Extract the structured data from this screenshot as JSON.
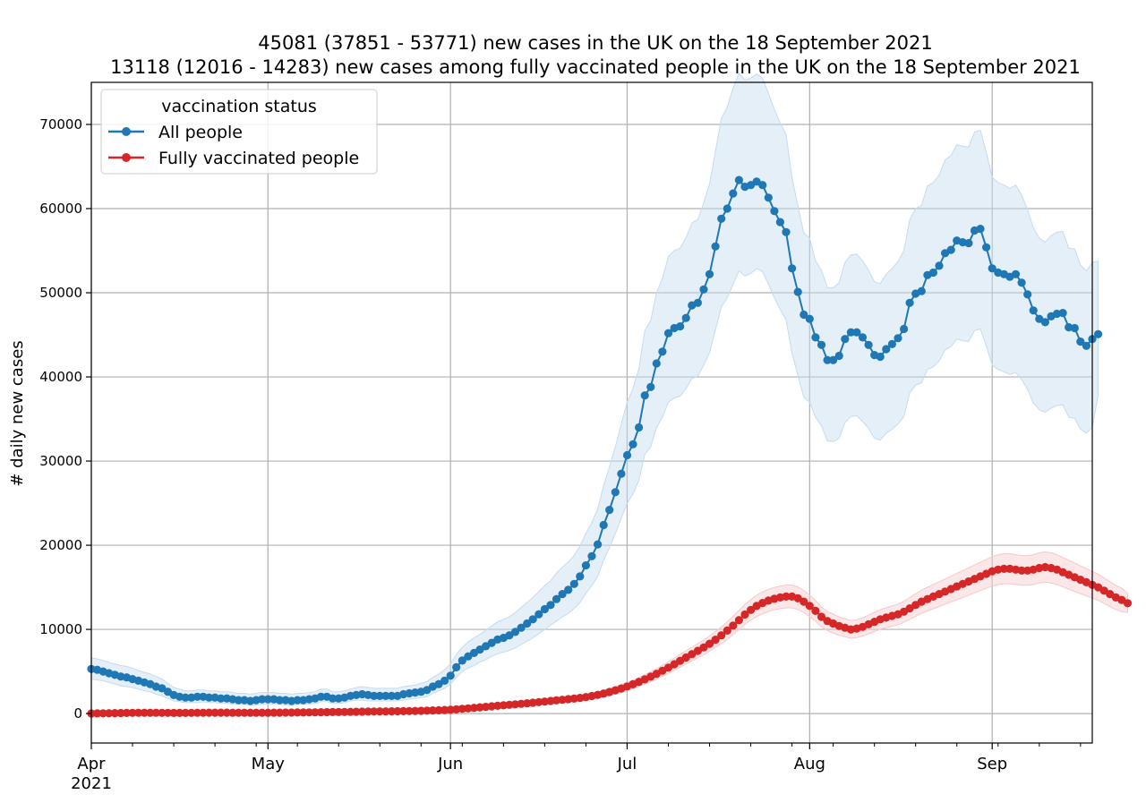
{
  "chart_data": {
    "type": "line",
    "title": "45081 (37851 - 53771) new cases in the UK on the 18 September 2021",
    "subtitle": "13118 (12016 - 14283) new cases among fully vaccinated people in the UK on the 18 September 2021",
    "xlabel": "",
    "ylabel": "# daily new cases",
    "xlim": [
      "2021-04-01",
      "2021-09-18"
    ],
    "ylim": [
      -3500,
      75000
    ],
    "x_tick_labels": [
      "Apr",
      "May",
      "Jun",
      "Jul",
      "Aug",
      "Sep"
    ],
    "x_tick_dates": [
      "2021-04-01",
      "2021-05-01",
      "2021-06-01",
      "2021-07-01",
      "2021-08-01",
      "2021-09-01"
    ],
    "x_year_label": "2021",
    "y_ticks": [
      0,
      10000,
      20000,
      30000,
      40000,
      50000,
      60000,
      70000
    ],
    "y_tick_labels": [
      "0",
      "10000",
      "20000",
      "30000",
      "40000",
      "50000",
      "60000",
      "70000"
    ],
    "grid": true,
    "legend": {
      "title": "vaccination status",
      "placement": "top-left",
      "entries": [
        "All people",
        "Fully vaccinated people"
      ]
    },
    "series": [
      {
        "name": "All people",
        "color": "#1f77b4",
        "band_color": "#c6dbef",
        "start_date": "2021-04-01",
        "values": [
          5300,
          5200,
          5000,
          4800,
          4600,
          4400,
          4300,
          4100,
          3900,
          3700,
          3500,
          3200,
          3000,
          2600,
          2200,
          2000,
          1900,
          1900,
          2000,
          2000,
          1900,
          1900,
          1800,
          1800,
          1700,
          1600,
          1600,
          1500,
          1600,
          1700,
          1700,
          1700,
          1600,
          1600,
          1500,
          1600,
          1600,
          1700,
          1800,
          2000,
          2000,
          1800,
          1800,
          1900,
          2100,
          2200,
          2300,
          2200,
          2100,
          2100,
          2100,
          2100,
          2100,
          2300,
          2400,
          2500,
          2600,
          2800,
          3200,
          3500,
          3900,
          4500,
          5500,
          6300,
          6800,
          7200,
          7600,
          8000,
          8400,
          8800,
          9000,
          9300,
          9700,
          10200,
          10700,
          11200,
          11800,
          12400,
          12900,
          13600,
          14200,
          14700,
          15400,
          16300,
          17600,
          18700,
          20100,
          22400,
          24200,
          26300,
          28500,
          30700,
          32000,
          34000,
          37800,
          38800,
          41600,
          43000,
          45200,
          45800,
          46000,
          47000,
          48500,
          48800,
          50400,
          52200,
          55500,
          58800,
          60000,
          61800,
          63400,
          62600,
          62800,
          63200,
          62800,
          61300,
          59700,
          58400,
          57200,
          52900,
          50100,
          47400,
          46900,
          44700,
          43800,
          42000,
          42000,
          42500,
          44500,
          45300,
          45300,
          44700,
          43800,
          42600,
          42400,
          43300,
          43900,
          44600,
          45700,
          48800,
          49900,
          50200,
          52100,
          52400,
          53200,
          54700,
          55100,
          56200,
          56000,
          55900,
          57400,
          57600,
          55400,
          52900,
          52400,
          52200,
          51900,
          52200,
          51200,
          49800,
          47900,
          46900,
          46500,
          47200,
          47500,
          47600,
          45900,
          45800,
          44200,
          43700,
          44500,
          45081
        ],
        "lower": [
          4100,
          4000,
          3900,
          3700,
          3500,
          3300,
          3200,
          3100,
          2900,
          2700,
          2600,
          2300,
          2100,
          1800,
          1500,
          1400,
          1300,
          1300,
          1300,
          1400,
          1300,
          1300,
          1200,
          1200,
          1100,
          1100,
          1100,
          1000,
          1000,
          1100,
          1100,
          1100,
          1100,
          1000,
          1000,
          1100,
          1100,
          1100,
          1200,
          1400,
          1400,
          1200,
          1200,
          1300,
          1500,
          1600,
          1600,
          1500,
          1500,
          1500,
          1500,
          1500,
          1500,
          1600,
          1700,
          1800,
          1900,
          2000,
          2400,
          2700,
          3000,
          3500,
          4300,
          5000,
          5400,
          5700,
          6100,
          6400,
          6800,
          7100,
          7300,
          7500,
          7800,
          8200,
          8600,
          9000,
          9500,
          10000,
          10500,
          11000,
          11500,
          11900,
          12500,
          13200,
          14300,
          15200,
          16300,
          18200,
          19700,
          21400,
          23200,
          25000,
          26100,
          27700,
          30800,
          31700,
          34000,
          35200,
          37000,
          37500,
          37700,
          38600,
          39800,
          40100,
          41400,
          42900,
          45600,
          48300,
          49400,
          51000,
          52600,
          52000,
          52300,
          52900,
          52500,
          51000,
          49400,
          48000,
          46800,
          42800,
          40200,
          37600,
          37000,
          35200,
          34200,
          32400,
          32300,
          32700,
          34600,
          35300,
          35400,
          34700,
          33900,
          32700,
          32500,
          33300,
          33800,
          34400,
          35300,
          38100,
          39000,
          39300,
          40900,
          41200,
          41900,
          43200,
          43600,
          44500,
          44300,
          44200,
          45500,
          45700,
          43700,
          41400,
          40900,
          40600,
          40300,
          40500,
          39700,
          38500,
          36900,
          36100,
          35800,
          36300,
          36600,
          36700,
          35200,
          35100,
          33800,
          33300,
          34000,
          37851
        ],
        "upper": [
          6600,
          6500,
          6300,
          6100,
          5900,
          5700,
          5600,
          5400,
          5100,
          4900,
          4700,
          4400,
          4100,
          3600,
          3100,
          2900,
          2700,
          2700,
          2800,
          2800,
          2700,
          2700,
          2600,
          2600,
          2500,
          2400,
          2400,
          2300,
          2400,
          2500,
          2500,
          2500,
          2400,
          2400,
          2300,
          2400,
          2400,
          2500,
          2600,
          2900,
          2900,
          2600,
          2600,
          2700,
          2900,
          3100,
          3200,
          3100,
          3000,
          3000,
          3000,
          3000,
          3000,
          3200,
          3300,
          3400,
          3600,
          3800,
          4300,
          4700,
          5200,
          5900,
          7000,
          7900,
          8500,
          9000,
          9400,
          9900,
          10400,
          10900,
          11200,
          11500,
          12000,
          12600,
          13200,
          13800,
          14500,
          15200,
          15800,
          16700,
          17400,
          18000,
          18800,
          19900,
          21400,
          22700,
          24300,
          27100,
          29300,
          31700,
          34400,
          37000,
          38600,
          41000,
          45500,
          46700,
          50000,
          51700,
          54300,
          55000,
          55300,
          56500,
          58300,
          58700,
          60700,
          62900,
          66800,
          70700,
          72100,
          74300,
          76100,
          75300,
          75500,
          76000,
          75500,
          73700,
          71800,
          70200,
          68800,
          63700,
          60300,
          57100,
          56500,
          53800,
          52700,
          50600,
          50600,
          51200,
          53600,
          54500,
          54600,
          53800,
          52700,
          51300,
          51100,
          52200,
          52900,
          53700,
          55000,
          58700,
          60000,
          60400,
          62700,
          63100,
          64000,
          65800,
          66300,
          67600,
          67400,
          67300,
          69100,
          69300,
          66700,
          63700,
          63100,
          62800,
          62400,
          62800,
          61600,
          59900,
          57700,
          56500,
          56000,
          56800,
          57200,
          57300,
          55300,
          55200,
          53300,
          52600,
          53600,
          53771
        ]
      },
      {
        "name": "Fully vaccinated people",
        "color": "#d62728",
        "band_color": "#f7c9c9",
        "start_date": "2021-04-01",
        "values": [
          10,
          20,
          30,
          40,
          50,
          60,
          70,
          80,
          90,
          100,
          100,
          90,
          80,
          80,
          70,
          70,
          70,
          80,
          90,
          100,
          110,
          110,
          110,
          110,
          100,
          100,
          100,
          90,
          90,
          90,
          100,
          110,
          110,
          120,
          120,
          130,
          130,
          140,
          150,
          160,
          170,
          180,
          180,
          190,
          200,
          210,
          220,
          230,
          240,
          250,
          260,
          270,
          280,
          290,
          300,
          310,
          330,
          350,
          370,
          390,
          420,
          450,
          500,
          560,
          620,
          680,
          740,
          800,
          860,
          920,
          980,
          1040,
          1100,
          1160,
          1220,
          1290,
          1360,
          1430,
          1500,
          1570,
          1640,
          1710,
          1780,
          1860,
          1960,
          2080,
          2220,
          2380,
          2560,
          2760,
          2980,
          3220,
          3480,
          3760,
          4060,
          4380,
          4720,
          5080,
          5460,
          5860,
          6260,
          6660,
          7060,
          7460,
          7860,
          8300,
          8780,
          9300,
          9860,
          10460,
          11100,
          11760,
          12320,
          12780,
          13140,
          13420,
          13640,
          13800,
          13900,
          13900,
          13700,
          13300,
          12800,
          12200,
          11500,
          11000,
          10700,
          10400,
          10200,
          10000,
          10100,
          10300,
          10600,
          10900,
          11200,
          11400,
          11600,
          11800,
          12100,
          12500,
          12900,
          13300,
          13600,
          13900,
          14200,
          14500,
          14800,
          15100,
          15400,
          15700,
          16000,
          16300,
          16600,
          16900,
          17100,
          17200,
          17200,
          17100,
          17000,
          17000,
          17100,
          17300,
          17400,
          17300,
          17100,
          16800,
          16500,
          16200,
          15900,
          15600,
          15300,
          15000,
          14600,
          14200,
          13800,
          13500,
          13118
        ],
        "lower": [
          -100,
          -80,
          -70,
          -60,
          -50,
          -40,
          -30,
          -20,
          -10,
          0,
          0,
          -10,
          -20,
          -20,
          -30,
          -30,
          -30,
          -20,
          -10,
          0,
          10,
          10,
          10,
          10,
          0,
          0,
          0,
          -10,
          -10,
          -10,
          0,
          10,
          10,
          20,
          20,
          30,
          30,
          40,
          50,
          60,
          70,
          80,
          80,
          90,
          100,
          110,
          120,
          130,
          140,
          150,
          160,
          170,
          180,
          190,
          200,
          210,
          220,
          240,
          260,
          280,
          300,
          330,
          370,
          420,
          470,
          520,
          570,
          620,
          670,
          720,
          770,
          820,
          870,
          920,
          970,
          1030,
          1090,
          1150,
          1210,
          1270,
          1330,
          1390,
          1450,
          1520,
          1610,
          1720,
          1840,
          1980,
          2140,
          2320,
          2520,
          2740,
          2980,
          3230,
          3500,
          3790,
          4100,
          4430,
          4780,
          5140,
          5510,
          5880,
          6250,
          6620,
          6990,
          7390,
          7830,
          8300,
          8820,
          9380,
          9970,
          10580,
          11100,
          11530,
          11860,
          12120,
          12320,
          12470,
          12560,
          12560,
          12370,
          12000,
          11530,
          10970,
          10320,
          9860,
          9580,
          9300,
          9120,
          8940,
          9030,
          9210,
          9480,
          9750,
          10020,
          10200,
          10380,
          10560,
          10830,
          11190,
          11550,
          11910,
          12180,
          12450,
          12720,
          12990,
          13260,
          13530,
          13800,
          14070,
          14340,
          14610,
          14880,
          15150,
          15330,
          15420,
          15420,
          15330,
          15240,
          15240,
          15330,
          15510,
          15600,
          15510,
          15330,
          15060,
          14790,
          14520,
          14250,
          13980,
          13710,
          13440,
          13080,
          12720,
          12360,
          12090,
          12016
        ],
        "upper": [
          120,
          130,
          140,
          150,
          160,
          170,
          180,
          190,
          200,
          210,
          210,
          200,
          190,
          190,
          180,
          180,
          180,
          190,
          200,
          210,
          220,
          220,
          220,
          220,
          210,
          210,
          210,
          200,
          200,
          200,
          210,
          220,
          220,
          230,
          230,
          240,
          240,
          250,
          260,
          270,
          280,
          290,
          290,
          300,
          310,
          320,
          330,
          340,
          350,
          360,
          370,
          380,
          390,
          400,
          410,
          420,
          450,
          470,
          490,
          510,
          550,
          580,
          640,
          710,
          780,
          850,
          920,
          990,
          1060,
          1130,
          1200,
          1270,
          1340,
          1410,
          1480,
          1560,
          1640,
          1720,
          1800,
          1880,
          1960,
          2040,
          2120,
          2210,
          2320,
          2450,
          2610,
          2790,
          2990,
          3210,
          3450,
          3710,
          3990,
          4300,
          4630,
          4980,
          5350,
          5740,
          6150,
          6590,
          7020,
          7450,
          7880,
          8310,
          8740,
          9220,
          9740,
          10310,
          10910,
          11560,
          12240,
          12950,
          13560,
          14060,
          14450,
          14750,
          14990,
          15160,
          15270,
          15270,
          15050,
          14620,
          14080,
          13420,
          12670,
          12140,
          11820,
          11490,
          11270,
          11050,
          11160,
          11380,
          11700,
          12030,
          12350,
          12570,
          12790,
          13010,
          13340,
          13790,
          14230,
          14670,
          15010,
          15340,
          15670,
          15990,
          16330,
          16660,
          16990,
          17330,
          17660,
          17990,
          18320,
          18660,
          18880,
          18990,
          18990,
          18880,
          18770,
          18770,
          18880,
          19100,
          19210,
          19100,
          18880,
          18550,
          18220,
          17880,
          17550,
          17220,
          16890,
          16560,
          16120,
          15680,
          15230,
          14900,
          14283
        ]
      }
    ]
  }
}
